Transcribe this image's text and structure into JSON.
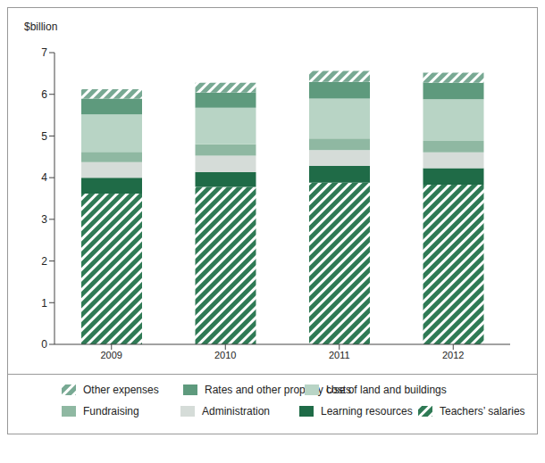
{
  "chart_data": {
    "type": "bar",
    "stacked": true,
    "y_label": "$billion",
    "categories": [
      "2009",
      "2010",
      "2011",
      "2012"
    ],
    "series": [
      {
        "name": "Teachers’ salaries",
        "color": "#2f7a55",
        "line_style": "hatched",
        "values": [
          3.62,
          3.78,
          3.88,
          3.83
        ]
      },
      {
        "name": "Learning resources",
        "color": "#1f6b47",
        "values": [
          0.38,
          0.35,
          0.4,
          0.4
        ]
      },
      {
        "name": "Administration",
        "color": "#d5dcd8",
        "values": [
          0.37,
          0.4,
          0.38,
          0.38
        ]
      },
      {
        "name": "Fundraising",
        "color": "#8fb8a2",
        "values": [
          0.25,
          0.27,
          0.28,
          0.27
        ]
      },
      {
        "name": "Use of land and buildings",
        "color": "#b8d4c5",
        "values": [
          0.9,
          0.88,
          0.96,
          1.0
        ]
      },
      {
        "name": "Rates and other property costs",
        "color": "#5e9a7d",
        "values": [
          0.38,
          0.36,
          0.4,
          0.4
        ]
      },
      {
        "name": "Other expenses",
        "color": "#78a993",
        "line_style": "hatched",
        "values": [
          0.22,
          0.24,
          0.26,
          0.24
        ]
      }
    ],
    "ylim": [
      0,
      7
    ],
    "yticks": [
      0,
      1,
      2,
      3,
      4,
      5,
      6,
      7
    ],
    "grid": false,
    "legend": "bottom"
  }
}
